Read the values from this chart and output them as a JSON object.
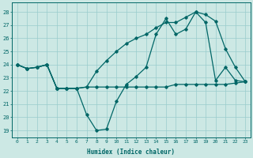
{
  "xlabel": "Humidex (Indice chaleur)",
  "bg_color": "#cce8e4",
  "grid_color": "#99cccc",
  "line_color": "#006666",
  "xlim": [
    -0.5,
    23.5
  ],
  "ylim": [
    18.5,
    28.7
  ],
  "yticks": [
    19,
    20,
    21,
    22,
    23,
    24,
    25,
    26,
    27,
    28
  ],
  "xticks": [
    0,
    1,
    2,
    3,
    4,
    5,
    6,
    7,
    8,
    9,
    10,
    11,
    12,
    13,
    14,
    15,
    16,
    17,
    18,
    19,
    20,
    21,
    22,
    23
  ],
  "line1_x": [
    0,
    1,
    2,
    3,
    4,
    5,
    6,
    7,
    8,
    9,
    10,
    11,
    12,
    13,
    14,
    15,
    16,
    17,
    18,
    19,
    20,
    21,
    22,
    23
  ],
  "line1_y": [
    24,
    23.7,
    23.8,
    24,
    22.2,
    22.2,
    22.2,
    22.3,
    23.5,
    24.3,
    25.0,
    25.6,
    26.0,
    26.3,
    26.8,
    27.2,
    27.2,
    27.6,
    28.0,
    27.8,
    27.3,
    25.2,
    23.8,
    22.7
  ],
  "line2_x": [
    0,
    1,
    2,
    3,
    4,
    5,
    6,
    7,
    8,
    9,
    10,
    11,
    12,
    13,
    14,
    15,
    16,
    17,
    18,
    19,
    20,
    21,
    22,
    23
  ],
  "line2_y": [
    24,
    23.7,
    23.8,
    24,
    22.2,
    22.2,
    22.2,
    20.2,
    19.0,
    19.1,
    21.2,
    22.5,
    23.1,
    23.8,
    26.3,
    27.5,
    26.3,
    26.7,
    28.0,
    27.2,
    22.8,
    23.8,
    22.8,
    22.7
  ],
  "line3_x": [
    0,
    1,
    2,
    3,
    4,
    5,
    6,
    7,
    8,
    9,
    10,
    11,
    12,
    13,
    14,
    15,
    16,
    17,
    18,
    19,
    20,
    21,
    22,
    23
  ],
  "line3_y": [
    24,
    23.7,
    23.8,
    24,
    22.2,
    22.2,
    22.2,
    22.3,
    22.3,
    22.3,
    22.3,
    22.3,
    22.3,
    22.3,
    22.3,
    22.3,
    22.5,
    22.5,
    22.5,
    22.5,
    22.5,
    22.5,
    22.6,
    22.7
  ]
}
